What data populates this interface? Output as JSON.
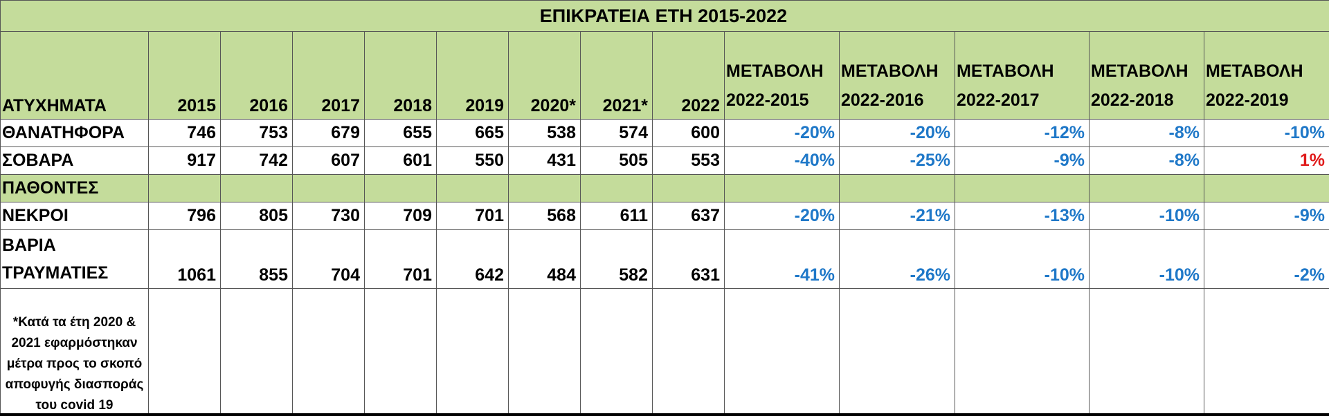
{
  "title": "ΕΠΙΚΡΑΤΕΙΑ ΕΤΗ 2015-2022",
  "header": {
    "label": "ΑΤΥΧΗΜΑΤΑ",
    "years": [
      "2015",
      "2016",
      "2017",
      "2018",
      "2019",
      "2020*",
      "2021*",
      "2022"
    ],
    "changes": [
      {
        "top": "ΜΕΤΑΒΟΛΗ",
        "bottom": "2022-2015"
      },
      {
        "top": "ΜΕΤΑΒΟΛΗ",
        "bottom": "2022-2016"
      },
      {
        "top": "ΜΕΤΑΒΟΛΗ",
        "bottom": "2022-2017"
      },
      {
        "top": "ΜΕΤΑΒΟΛΗ",
        "bottom": "2022-2018"
      },
      {
        "top": "ΜΕΤΑΒΟΛΗ",
        "bottom": "2022-2019"
      }
    ]
  },
  "rows": [
    {
      "label": "ΘΑΝΑΤΗΦΟΡΑ",
      "values": [
        "746",
        "753",
        "679",
        "655",
        "665",
        "538",
        "574",
        "600"
      ],
      "changes": [
        "-20%",
        "-20%",
        "-12%",
        "-8%",
        "-10%"
      ]
    },
    {
      "label": "ΣΟΒΑΡΑ",
      "values": [
        "917",
        "742",
        "607",
        "601",
        "550",
        "431",
        "505",
        "553"
      ],
      "changes": [
        "-40%",
        "-25%",
        "-9%",
        "-8%",
        "1%"
      ]
    }
  ],
  "group_label": "ΠΑΘΟΝΤΕΣ",
  "victims": [
    {
      "label": "ΝΕΚΡΟΙ",
      "values": [
        "796",
        "805",
        "730",
        "709",
        "701",
        "568",
        "611",
        "637"
      ],
      "changes": [
        "-20%",
        "-21%",
        "-13%",
        "-10%",
        "-9%"
      ]
    },
    {
      "label_line1": "ΒΑΡΙΑ",
      "label_line2": "ΤΡΑΥΜΑΤΙΕΣ",
      "values": [
        "1061",
        "855",
        "704",
        "701",
        "642",
        "484",
        "582",
        "631"
      ],
      "changes": [
        "-41%",
        "-26%",
        "-10%",
        "-10%",
        "-2%"
      ]
    }
  ],
  "footnote": "*Κατά τα έτη 2020 & 2021 εφαρμόστηκαν μέτρα προς το σκοπό αποφυγής διασποράς του covid 19",
  "colors": {
    "header_green": "#c4dc9b",
    "negative_change": "#1f78c8",
    "positive_change": "#e01b1b"
  }
}
